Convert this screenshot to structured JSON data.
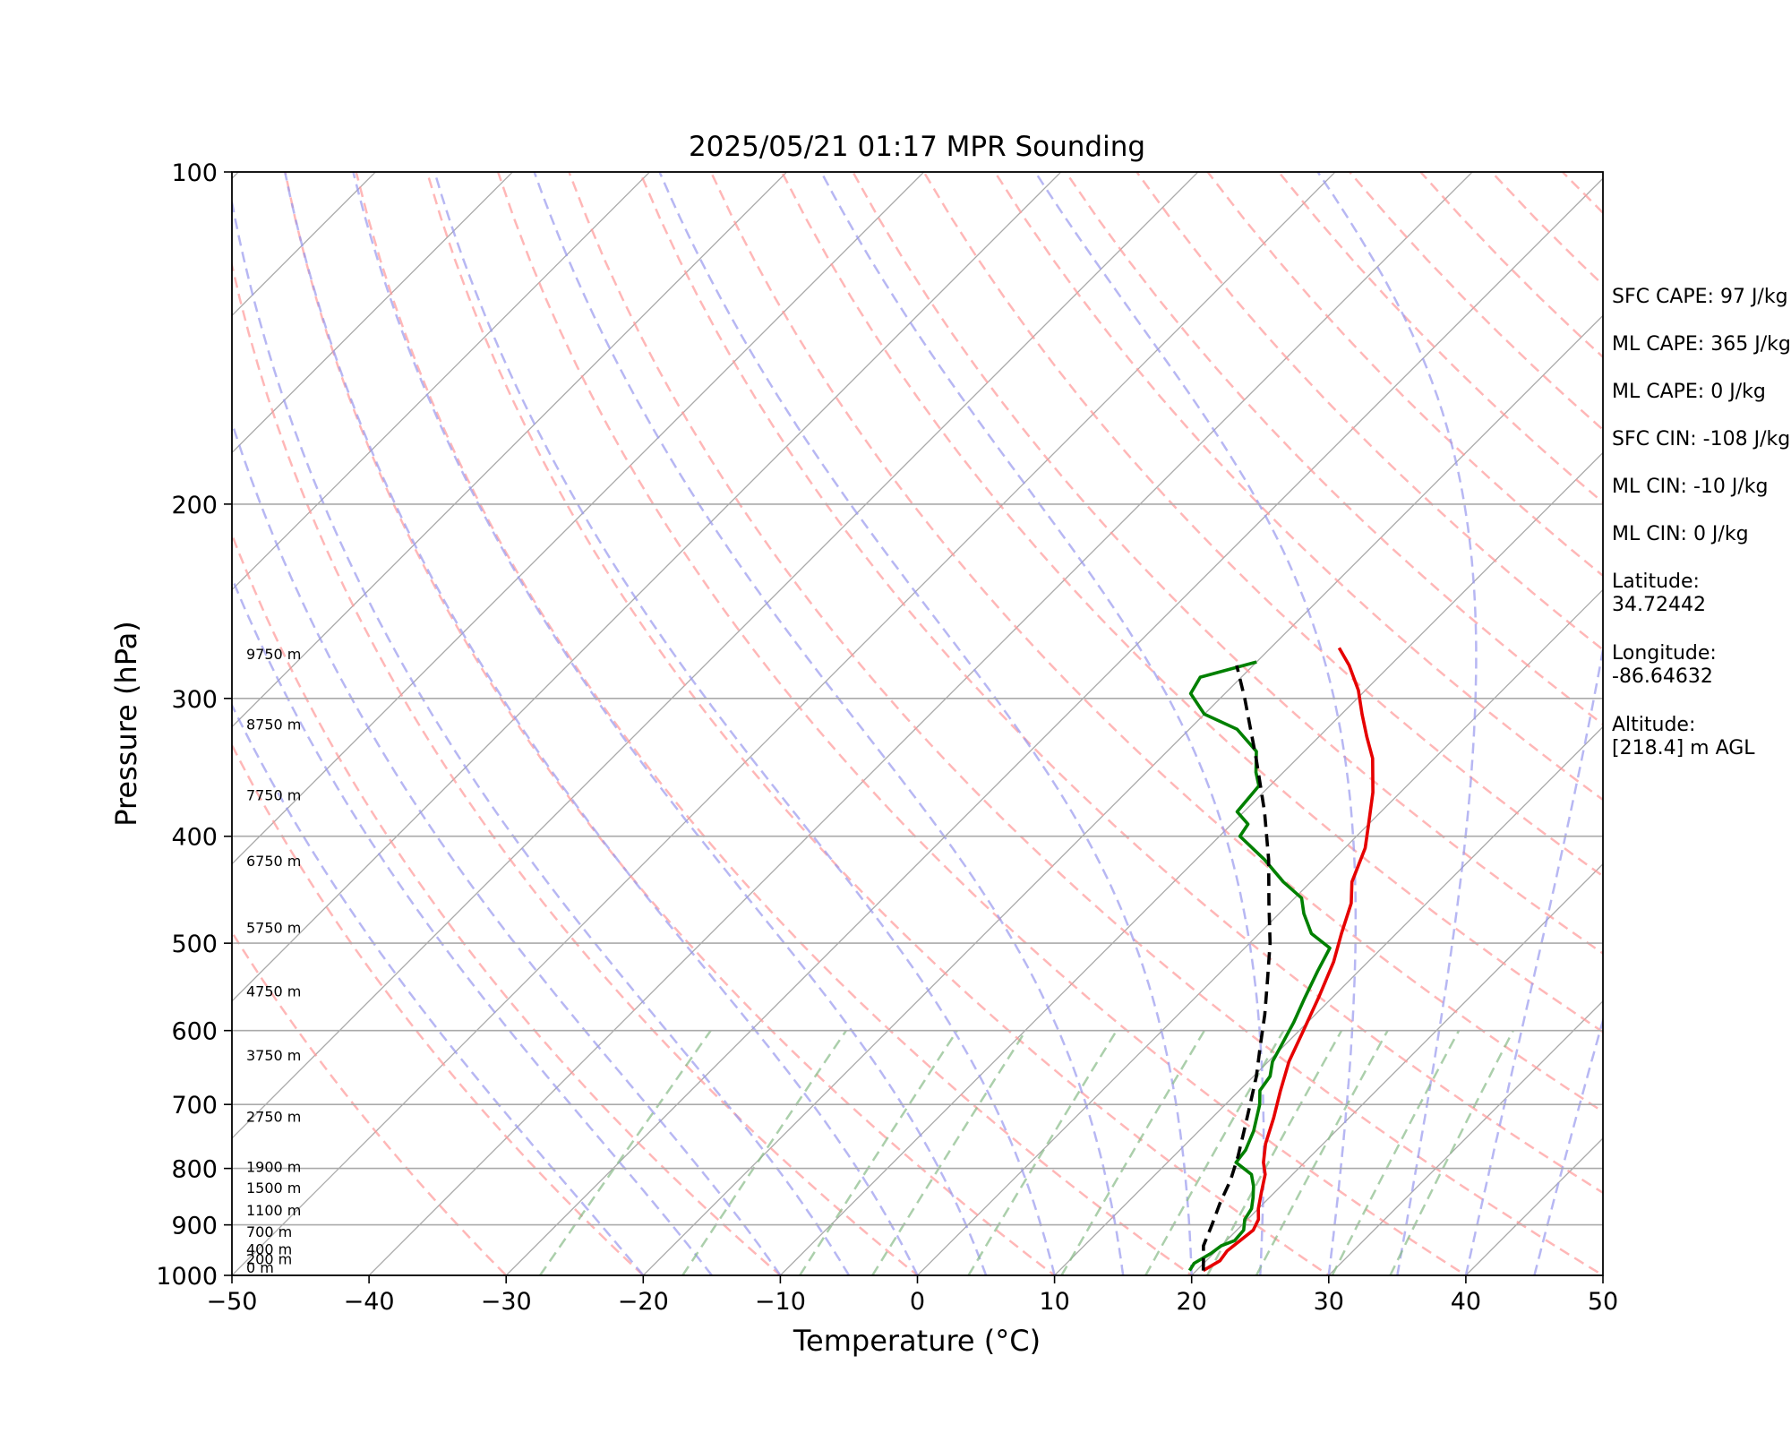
{
  "chart_data": {
    "type": "line",
    "title": "2025/05/21 01:17 MPR Sounding",
    "xlabel": "Temperature (°C)",
    "ylabel": "Pressure (hPa)",
    "xlim": [
      -50,
      50
    ],
    "ylim": [
      1000,
      100
    ],
    "y_scale": "log",
    "skew": "temperature isotherms skewed 45°",
    "xticks": [
      -50,
      -40,
      -30,
      -20,
      -10,
      0,
      10,
      20,
      30,
      40,
      50
    ],
    "xtick_labels": [
      "−50",
      "−40",
      "−30",
      "−20",
      "−10",
      "0",
      "10",
      "20",
      "30",
      "40",
      "50"
    ],
    "yticks": [
      100,
      200,
      300,
      400,
      500,
      600,
      700,
      800,
      900,
      1000
    ],
    "ytick_labels": [
      "100",
      "200",
      "300",
      "400",
      "500",
      "600",
      "700",
      "800",
      "900",
      "1000"
    ],
    "grid": true,
    "series": [
      {
        "color": "#e60000",
        "style": "solid",
        "points": [
          [
            20.5,
            990
          ],
          [
            21.0,
            970
          ],
          [
            20.8,
            950
          ],
          [
            21.0,
            930
          ],
          [
            21.2,
            910
          ],
          [
            20.8,
            890
          ],
          [
            20.0,
            870
          ],
          [
            19.0,
            840
          ],
          [
            18.0,
            810
          ],
          [
            17.0,
            790
          ],
          [
            15.8,
            760
          ],
          [
            14.5,
            720
          ],
          [
            13.0,
            680
          ],
          [
            11.5,
            640
          ],
          [
            10.3,
            600
          ],
          [
            9.0,
            560
          ],
          [
            7.5,
            520
          ],
          [
            6.0,
            490
          ],
          [
            4.5,
            460
          ],
          [
            3.0,
            440
          ],
          [
            1.5,
            410
          ],
          [
            0.0,
            390
          ],
          [
            -2.0,
            365
          ],
          [
            -4.5,
            340
          ],
          [
            -6.5,
            325
          ],
          [
            -8.5,
            310
          ],
          [
            -10.5,
            295
          ],
          [
            -13.0,
            280
          ],
          [
            -15.0,
            270
          ]
        ]
      },
      {
        "color": "#008000",
        "style": "solid",
        "points": [
          [
            19.5,
            990
          ],
          [
            19.3,
            975
          ],
          [
            19.8,
            955
          ],
          [
            20.0,
            940
          ],
          [
            20.6,
            930
          ],
          [
            20.5,
            910
          ],
          [
            19.8,
            890
          ],
          [
            19.5,
            870
          ],
          [
            18.8,
            850
          ],
          [
            18.0,
            830
          ],
          [
            17.0,
            810
          ],
          [
            15.0,
            790
          ],
          [
            14.8,
            770
          ],
          [
            14.0,
            740
          ],
          [
            12.5,
            700
          ],
          [
            11.5,
            680
          ],
          [
            11.2,
            660
          ],
          [
            10.3,
            640
          ],
          [
            9.8,
            620
          ],
          [
            9.0,
            590
          ],
          [
            8.0,
            560
          ],
          [
            7.0,
            530
          ],
          [
            6.2,
            505
          ],
          [
            3.8,
            490
          ],
          [
            1.8,
            470
          ],
          [
            0.5,
            455
          ],
          [
            -2.0,
            440
          ],
          [
            -5.0,
            420
          ],
          [
            -8.5,
            400
          ],
          [
            -8.8,
            390
          ],
          [
            -10.5,
            380
          ],
          [
            -10.8,
            360
          ],
          [
            -12.0,
            350
          ],
          [
            -13.5,
            335
          ],
          [
            -16.5,
            320
          ],
          [
            -20.0,
            310
          ],
          [
            -22.5,
            297
          ],
          [
            -23.0,
            287
          ],
          [
            -20.0,
            278
          ]
        ]
      },
      {
        "color": "#000000",
        "style": "dashed",
        "points": [
          [
            20.5,
            990
          ],
          [
            19.8,
            970
          ],
          [
            18.7,
            940
          ],
          [
            17.8,
            900
          ],
          [
            16.8,
            860
          ],
          [
            15.9,
            820
          ],
          [
            14.7,
            780
          ],
          [
            13.3,
            740
          ],
          [
            11.8,
            700
          ],
          [
            10.2,
            660
          ],
          [
            8.3,
            620
          ],
          [
            6.3,
            580
          ],
          [
            4.0,
            540
          ],
          [
            1.5,
            500
          ],
          [
            -1.5,
            460
          ],
          [
            -4.7,
            420
          ],
          [
            -8.5,
            380
          ],
          [
            -13.0,
            340
          ],
          [
            -18.2,
            300
          ],
          [
            -21.2,
            280
          ]
        ]
      }
    ],
    "altitude_labels": [
      {
        "label": "0 m",
        "p": 1000
      },
      {
        "label": "200 m",
        "p": 982
      },
      {
        "label": "400 m",
        "p": 962
      },
      {
        "label": "700 m",
        "p": 928
      },
      {
        "label": "1100 m",
        "p": 887
      },
      {
        "label": "1500 m",
        "p": 847
      },
      {
        "label": "1900 m",
        "p": 810
      },
      {
        "label": "2750 m",
        "p": 730
      },
      {
        "label": "3750 m",
        "p": 642
      },
      {
        "label": "4750 m",
        "p": 562
      },
      {
        "label": "5750 m",
        "p": 492
      },
      {
        "label": "6750 m",
        "p": 428
      },
      {
        "label": "7750 m",
        "p": 373
      },
      {
        "label": "8750 m",
        "p": 322
      },
      {
        "label": "9750 m",
        "p": 278
      }
    ],
    "info_panel": [
      "SFC CAPE: 97 J/kg",
      "ML CAPE: 365 J/kg",
      "ML CAPE: 0 J/kg",
      "SFC CIN: -108 J/kg",
      "ML CIN: -10 J/kg",
      "ML CIN: 0 J/kg",
      "Latitude:\n34.72442",
      "Longitude:\n-86.64632",
      "Altitude:\n[218.4] m AGL"
    ],
    "colors": {
      "temperature": "#e60000",
      "dewpoint": "#008000",
      "parcel": "#000000",
      "dry_adiabats": "#ff9999",
      "moist_adiabats": "#9999ee",
      "mixing_ratio": "#88bb88",
      "grid": "#aaaaaa"
    }
  }
}
